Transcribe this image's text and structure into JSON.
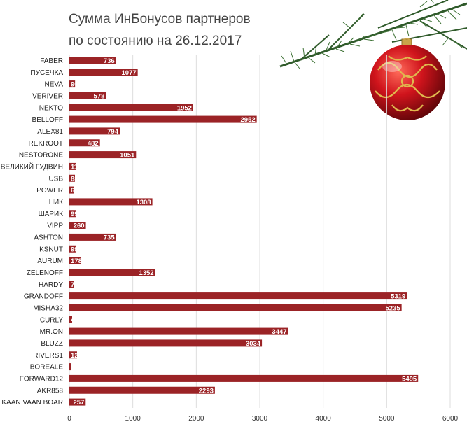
{
  "chart_data": {
    "type": "hbar",
    "title": [
      "Сумма ИнБонусов партнеров",
      "по состоянию на 26.12.2017"
    ],
    "categories": [
      "FABER",
      "ПУСЕЧКА",
      "NEVA",
      "VERIVER",
      "NEKTO",
      "BELLOFF",
      "ALEX81",
      "REKROOT",
      "NESTORONE",
      "ВЕЛИКИЙ ГУДВИН",
      "USB",
      "POWER",
      "НИК",
      "ШАРИК",
      "VIPP",
      "ASHTON",
      "KSNUT",
      "AURUM",
      "ZELENOFF",
      "HARDY",
      "GRANDOFF",
      "MISHA32",
      "CURLY",
      "MR.ON",
      "BLUZZ",
      "RIVERS1",
      "BOREALE",
      "FORWARD12",
      "AKR858",
      "KAAN VAAN BOAR"
    ],
    "values": [
      736,
      1077,
      90,
      578,
      1952,
      2952,
      794,
      482,
      1051,
      110,
      88,
      66,
      1308,
      99,
      260,
      735,
      99,
      178,
      1352,
      77,
      5319,
      5235,
      44,
      3447,
      3034,
      121,
      33,
      5495,
      2293,
      257
    ],
    "color": "#9b2326",
    "xlim": [
      0,
      6000
    ],
    "xticks": [
      0,
      1000,
      2000,
      3000,
      4000,
      5000,
      6000
    ],
    "grid": true
  }
}
